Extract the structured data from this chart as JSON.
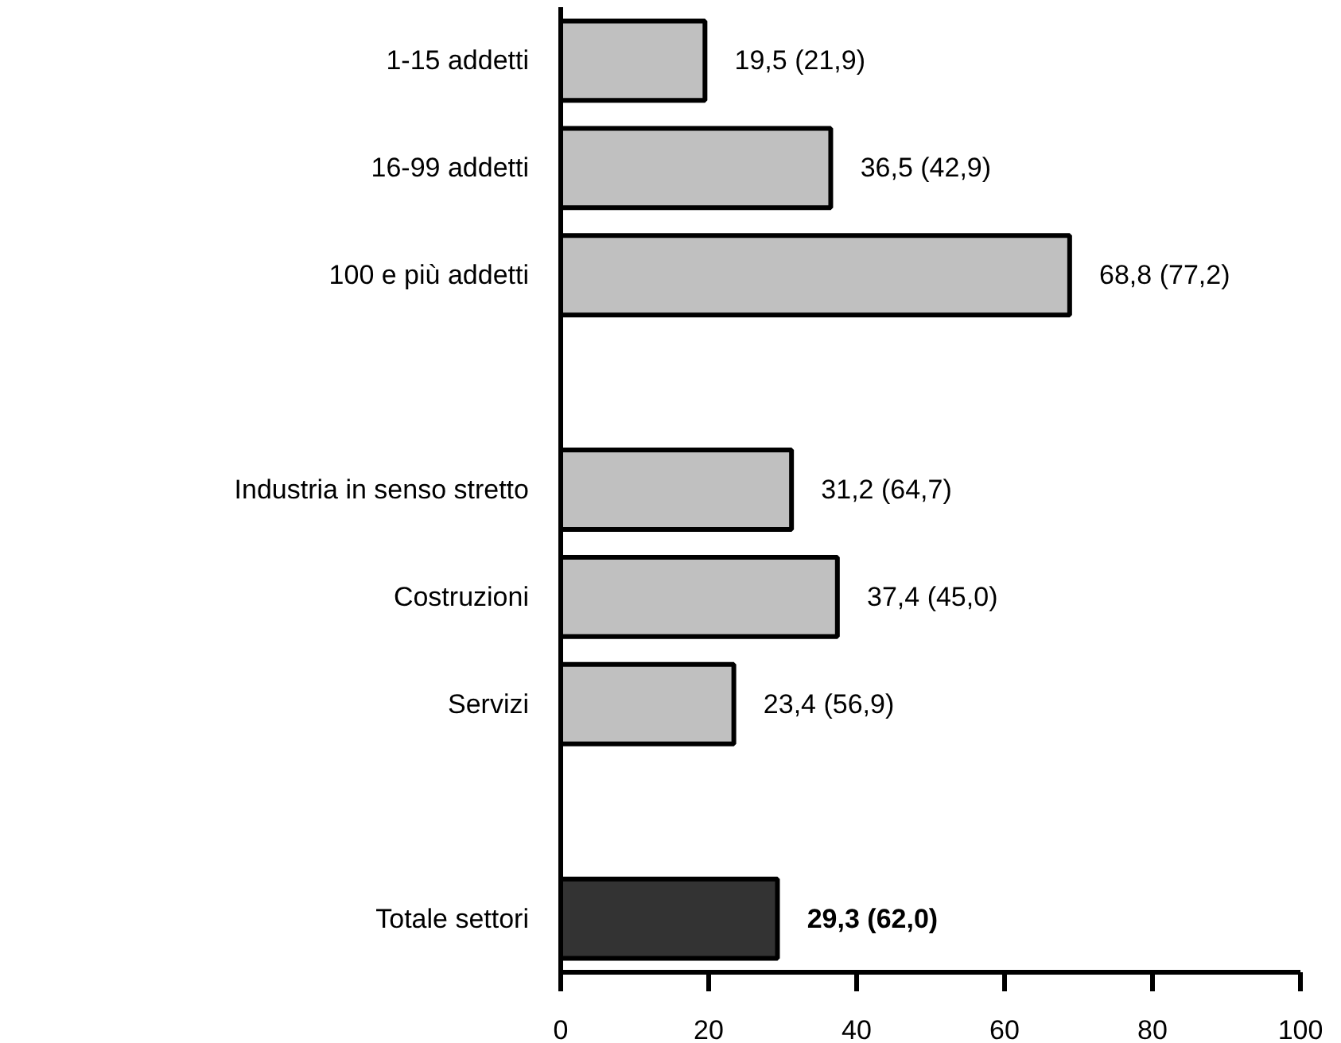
{
  "chart_data": {
    "type": "bar",
    "orientation": "horizontal",
    "categories": [
      "1-15 addetti",
      "16-99 addetti",
      "100 e più addetti",
      null,
      "Industria in senso stretto",
      "Costruzioni",
      "Servizi",
      null,
      "Totale settori"
    ],
    "values": [
      19.5,
      36.5,
      68.8,
      null,
      31.2,
      37.4,
      23.4,
      null,
      29.3
    ],
    "colors": [
      "#c0c0c0",
      "#c0c0c0",
      "#c0c0c0",
      "#c0c0c0",
      "#c0c0c0",
      "#c0c0c0",
      "#c0c0c0",
      "#c0c0c0",
      "#333333"
    ],
    "value_labels": [
      "19,5 (21,9)",
      "36,5 (42,9)",
      "68,8 (77,2)",
      null,
      "31,2 (64,7)",
      "37,4 (45,0)",
      "23,4 (56,9)",
      null,
      "29,3 (62,0)"
    ],
    "xlim": [
      0,
      100
    ],
    "xticks": [
      0,
      20,
      40,
      60,
      80,
      100
    ],
    "grid": false
  }
}
